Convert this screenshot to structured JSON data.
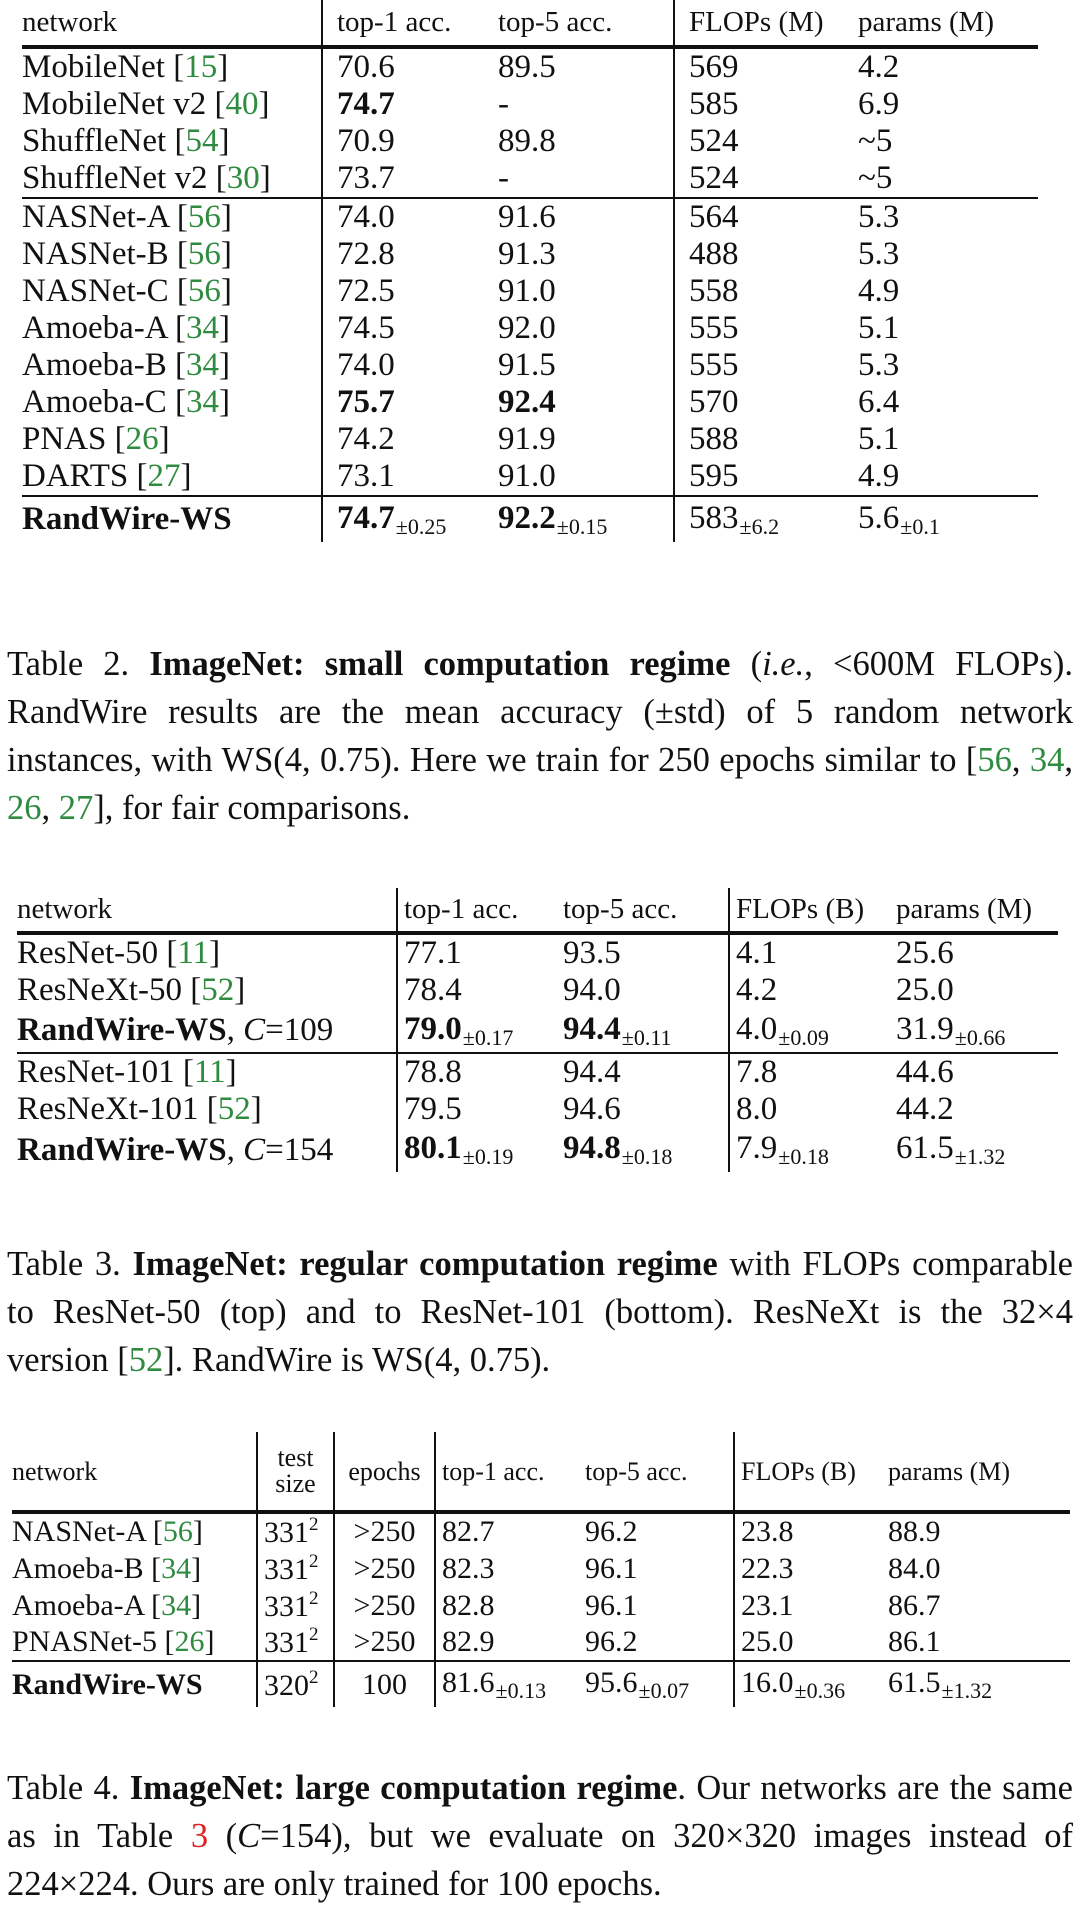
{
  "table2": {
    "columns": [
      "network",
      "top-1 acc.",
      "top-5 acc.",
      "FLOPs (M)",
      "params (M)"
    ],
    "groups": [
      [
        {
          "name": "MobileNet",
          "cite": "15",
          "top1": "70.6",
          "top5": "89.5",
          "flops": "569",
          "params": "4.2"
        },
        {
          "name": "MobileNet v2",
          "cite": "40",
          "top1": "74.7",
          "top5": "-",
          "flops": "585",
          "params": "6.9"
        },
        {
          "name": "ShuffleNet",
          "cite": "54",
          "top1": "70.9",
          "top5": "89.8",
          "flops": "524",
          "params": "~5"
        },
        {
          "name": "ShuffleNet v2",
          "cite": "30",
          "top1": "73.7",
          "top5": "-",
          "flops": "524",
          "params": "~5"
        }
      ],
      [
        {
          "name": "NASNet-A",
          "cite": "56",
          "top1": "74.0",
          "top5": "91.6",
          "flops": "564",
          "params": "5.3"
        },
        {
          "name": "NASNet-B",
          "cite": "56",
          "top1": "72.8",
          "top5": "91.3",
          "flops": "488",
          "params": "5.3"
        },
        {
          "name": "NASNet-C",
          "cite": "56",
          "top1": "72.5",
          "top5": "91.0",
          "flops": "558",
          "params": "4.9"
        },
        {
          "name": "Amoeba-A",
          "cite": "34",
          "top1": "74.5",
          "top5": "92.0",
          "flops": "555",
          "params": "5.1"
        },
        {
          "name": "Amoeba-B",
          "cite": "34",
          "top1": "74.0",
          "top5": "91.5",
          "flops": "555",
          "params": "5.3"
        },
        {
          "name": "Amoeba-C",
          "cite": "34",
          "top1": "75.7",
          "top5": "92.4",
          "flops": "570",
          "params": "6.4"
        },
        {
          "name": "PNAS",
          "cite": "26",
          "top1": "74.2",
          "top5": "91.9",
          "flops": "588",
          "params": "5.1"
        },
        {
          "name": "DARTS",
          "cite": "27",
          "top1": "73.1",
          "top5": "91.0",
          "flops": "595",
          "params": "4.9"
        }
      ]
    ],
    "ours": {
      "name": "RandWire-WS",
      "top1": "74.7",
      "top1_std": "±0.25",
      "top5": "92.2",
      "top5_std": "±0.15",
      "flops": "583",
      "flops_std": "±6.2",
      "params": "5.6",
      "params_std": "±0.1"
    },
    "caption": {
      "lead": "Table 2. ",
      "bold": "ImageNet: small computation regime",
      "p1": " (",
      "italic": "i.e.",
      "p2": ", <600M FLOPs). RandWire results are the mean accuracy (±std) of 5 random network instances, with WS(4, 0.75). Here we train for 250 epochs similar to [",
      "refs": [
        "56",
        "34",
        "26",
        "27"
      ],
      "p3": "], for fair comparisons."
    }
  },
  "table3": {
    "columns": [
      "network",
      "top-1 acc.",
      "top-5 acc.",
      "FLOPs (B)",
      "params (M)"
    ],
    "rows": [
      {
        "name": "ResNet-50",
        "cite": "11",
        "top1": "77.1",
        "top5": "93.5",
        "flops": "4.1",
        "params": "25.6"
      },
      {
        "name": "ResNeXt-50",
        "cite": "52",
        "top1": "78.4",
        "top5": "94.0",
        "flops": "4.2",
        "params": "25.0"
      },
      {
        "name": "RandWire-WS",
        "csuffix": "=109",
        "top1": "79.0",
        "top1_std": "±0.17",
        "top5": "94.4",
        "top5_std": "±0.11",
        "flops": "4.0",
        "flops_std": "±0.09",
        "params": "31.9",
        "params_std": "±0.66"
      },
      {
        "name": "ResNet-101",
        "cite": "11",
        "top1": "78.8",
        "top5": "94.4",
        "flops": "7.8",
        "params": "44.6"
      },
      {
        "name": "ResNeXt-101",
        "cite": "52",
        "top1": "79.5",
        "top5": "94.6",
        "flops": "8.0",
        "params": "44.2"
      },
      {
        "name": "RandWire-WS",
        "csuffix": "=154",
        "top1": "80.1",
        "top1_std": "±0.19",
        "top5": "94.8",
        "top5_std": "±0.18",
        "flops": "7.9",
        "flops_std": "±0.18",
        "params": "61.5",
        "params_std": "±1.32"
      }
    ],
    "c_symbol": "C",
    "caption": {
      "lead": "Table 3. ",
      "bold": "ImageNet: regular computation regime",
      "p1": " with FLOPs comparable to ResNet-50 (top) and to ResNet-101 (bottom). ResNeXt is the 32×4 version [",
      "ref": "52",
      "p2": "]. RandWire is WS(4, 0.75)."
    }
  },
  "table4": {
    "columns": [
      "network",
      "test",
      "size",
      "epochs",
      "top-1 acc.",
      "top-5 acc.",
      "FLOPs (B)",
      "params (M)"
    ],
    "rows": [
      {
        "name": "NASNet-A",
        "cite": "56",
        "size": "331",
        "sup": "2",
        "epochs": ">250",
        "top1": "82.7",
        "top5": "96.2",
        "flops": "23.8",
        "params": "88.9"
      },
      {
        "name": "Amoeba-B",
        "cite": "34",
        "size": "331",
        "sup": "2",
        "epochs": ">250",
        "top1": "82.3",
        "top5": "96.1",
        "flops": "22.3",
        "params": "84.0"
      },
      {
        "name": "Amoeba-A",
        "cite": "34",
        "size": "331",
        "sup": "2",
        "epochs": ">250",
        "top1": "82.8",
        "top5": "96.1",
        "flops": "23.1",
        "params": "86.7"
      },
      {
        "name": "PNASNet-5",
        "cite": "26",
        "size": "331",
        "sup": "2",
        "epochs": ">250",
        "top1": "82.9",
        "top5": "96.2",
        "flops": "25.0",
        "params": "86.1"
      }
    ],
    "ours": {
      "name": "RandWire-WS",
      "size": "320",
      "sup": "2",
      "epochs": "100",
      "top1": "81.6",
      "top1_std": "±0.13",
      "top5": "95.6",
      "top5_std": "±0.07",
      "flops": "16.0",
      "flops_std": "±0.36",
      "params": "61.5",
      "params_std": "±1.32"
    },
    "caption": {
      "lead": "Table 4. ",
      "bold": "ImageNet: large computation regime",
      "p1": ". Our networks are the same as in Table ",
      "ref": "3",
      "p2": " (",
      "c": "C",
      "p3": "=154), but we evaluate on 320×320 images instead of 224×224. Ours are only trained for 100 epochs."
    }
  }
}
